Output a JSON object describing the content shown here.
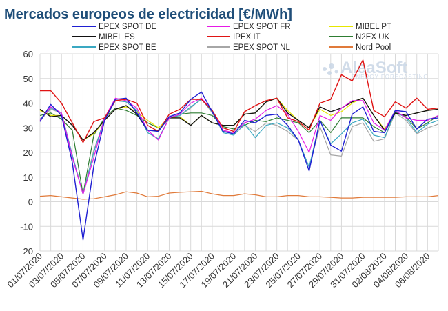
{
  "chart_data": {
    "type": "line",
    "title": "Mercados europeos de electricidad [€/MWh]",
    "ylim": [
      -20,
      60
    ],
    "yticks": [
      -20,
      -10,
      0,
      10,
      20,
      30,
      40,
      50,
      60
    ],
    "grid": true,
    "legend_position": "top",
    "x": [
      "01/07/2020",
      "02/07/2020",
      "03/07/2020",
      "04/07/2020",
      "05/07/2020",
      "06/07/2020",
      "07/07/2020",
      "08/07/2020",
      "09/07/2020",
      "10/07/2020",
      "11/07/2020",
      "12/07/2020",
      "13/07/2020",
      "14/07/2020",
      "15/07/2020",
      "16/07/2020",
      "17/07/2020",
      "18/07/2020",
      "19/07/2020",
      "20/07/2020",
      "21/07/2020",
      "22/07/2020",
      "23/07/2020",
      "24/07/2020",
      "25/07/2020",
      "26/07/2020",
      "27/07/2020",
      "28/07/2020",
      "29/07/2020",
      "30/07/2020",
      "31/07/2020",
      "01/08/2020",
      "02/08/2020",
      "03/08/2020",
      "04/08/2020",
      "05/08/2020",
      "06/08/2020",
      "07/08/2020"
    ],
    "xtick_labels": [
      "01/07/2020",
      "03/07/2020",
      "05/07/2020",
      "07/07/2020",
      "09/07/2020",
      "11/07/2020",
      "13/07/2020",
      "15/07/2020",
      "17/07/2020",
      "19/07/2020",
      "21/07/2020",
      "23/07/2020",
      "25/07/2020",
      "27/07/2020",
      "29/07/2020",
      "31/07/2020",
      "02/08/2020",
      "04/08/2020",
      "06/08/2020"
    ],
    "series": [
      {
        "name": "EPEX SPOT DE",
        "color": "#1f1fd2",
        "width": 1.4,
        "values": [
          32.5,
          39.5,
          35,
          16,
          -15.5,
          14.5,
          33,
          41.5,
          42,
          36,
          29,
          28.5,
          34.5,
          36,
          41.5,
          44.5,
          36.5,
          28.5,
          27.5,
          33,
          32,
          35,
          35.5,
          31,
          25,
          12.5,
          33,
          23,
          20.5,
          35.5,
          38.5,
          28.5,
          28,
          37,
          36.5,
          29.5,
          33.5,
          34
        ]
      },
      {
        "name": "EPEX SPOT FR",
        "color": "#e619e6",
        "width": 1.2,
        "values": [
          33,
          38.5,
          36,
          18,
          3,
          18,
          34,
          42,
          41,
          38,
          29,
          25,
          34,
          35.5,
          40,
          42,
          37,
          29,
          28,
          32,
          33.5,
          37,
          39,
          35.5,
          28.5,
          20,
          35,
          33,
          38,
          41,
          41,
          32,
          29,
          37,
          34,
          33,
          33,
          35
        ]
      },
      {
        "name": "MIBEL PT",
        "color": "#e6e600",
        "width": 1.2,
        "values": [
          37,
          35,
          35,
          31,
          25,
          27.5,
          33,
          37.5,
          38.5,
          36.5,
          33,
          30,
          34,
          34.5,
          31,
          35,
          32,
          31,
          31,
          35.5,
          36,
          40.5,
          42,
          37,
          33,
          30,
          37.5,
          35,
          36.5,
          40,
          42,
          35,
          29.5,
          36,
          35,
          36,
          37,
          37.5
        ]
      },
      {
        "name": "IPEX IT",
        "color": "#e01414",
        "width": 1.4,
        "values": [
          45,
          45,
          40,
          32,
          24,
          32.5,
          34,
          41,
          41.5,
          40,
          31,
          28.5,
          35.5,
          37.5,
          41.5,
          41.5,
          37,
          30,
          28.5,
          36.5,
          39,
          41,
          42,
          34,
          32.5,
          29,
          40,
          41.5,
          51.5,
          49,
          57.5,
          37,
          34.5,
          40.5,
          38,
          42,
          37.5,
          38
        ]
      },
      {
        "name": "EPEX SPOT BE",
        "color": "#3aa8c2",
        "width": 1.2,
        "values": [
          33.5,
          38,
          36,
          19,
          3,
          20,
          34,
          41,
          40.5,
          37,
          28,
          25.5,
          34,
          35,
          38.5,
          41.5,
          36.5,
          28,
          27,
          31.5,
          26,
          31,
          32,
          30,
          25,
          14,
          33,
          23.5,
          27.5,
          32,
          33.5,
          27,
          26,
          36.5,
          34,
          28,
          31.5,
          33
        ]
      },
      {
        "name": "MIBEL ES",
        "color": "#111111",
        "width": 1.4,
        "values": [
          37.5,
          34.5,
          35,
          31,
          25,
          28,
          33,
          37.5,
          39,
          35.5,
          29,
          29,
          34,
          34,
          31,
          35,
          32,
          31,
          31,
          35.5,
          36,
          40.5,
          42,
          36,
          33,
          30,
          38.5,
          36.5,
          38,
          40.5,
          42,
          35,
          29,
          36,
          35,
          36,
          37,
          37.5
        ]
      },
      {
        "name": "EPEX SPOT NL",
        "color": "#a6a6a6",
        "width": 1.2,
        "values": [
          33,
          37.5,
          36,
          19,
          3,
          21,
          33,
          41,
          40.5,
          37,
          28,
          25.5,
          34,
          35,
          38,
          42,
          36,
          29,
          27.5,
          31,
          28.5,
          32,
          31,
          28.5,
          25,
          14,
          30.5,
          19,
          18.5,
          30.5,
          32,
          24.5,
          25.5,
          36,
          33,
          27.5,
          30,
          31.5
        ]
      },
      {
        "name": "N2EX UK",
        "color": "#2e7d32",
        "width": 1.2,
        "values": [
          35,
          36,
          33.5,
          29,
          3,
          27,
          34,
          38,
          37,
          35,
          32,
          30,
          34,
          35.5,
          36,
          36,
          35,
          30.5,
          29.5,
          31,
          33,
          32.5,
          34,
          33,
          32,
          28,
          33,
          28,
          34,
          34,
          34,
          30.5,
          28,
          36,
          34.5,
          29.5,
          32,
          35
        ]
      },
      {
        "name": "Nord Pool",
        "color": "#e07a3a",
        "width": 1.2,
        "values": [
          2.2,
          2.5,
          2,
          1.5,
          1,
          1.2,
          2,
          2.8,
          4,
          3.5,
          2,
          2.2,
          3.5,
          3.8,
          4,
          4.2,
          3.2,
          2.5,
          2.5,
          3.2,
          2.8,
          2,
          2,
          2.5,
          2.5,
          2,
          2,
          1.8,
          1.5,
          1.5,
          1.8,
          1.8,
          1.8,
          1.8,
          2,
          2,
          2,
          2.5
        ]
      }
    ],
    "legend_order": [
      "EPEX SPOT DE",
      "EPEX SPOT FR",
      "MIBEL PT",
      "MIBEL ES",
      "IPEX IT",
      "N2EX UK",
      "EPEX SPOT BE",
      "EPEX SPOT NL",
      "Nord Pool"
    ]
  },
  "watermark": {
    "brand": "AleaSoft",
    "tagline": "ENERGY FORECASTING"
  }
}
